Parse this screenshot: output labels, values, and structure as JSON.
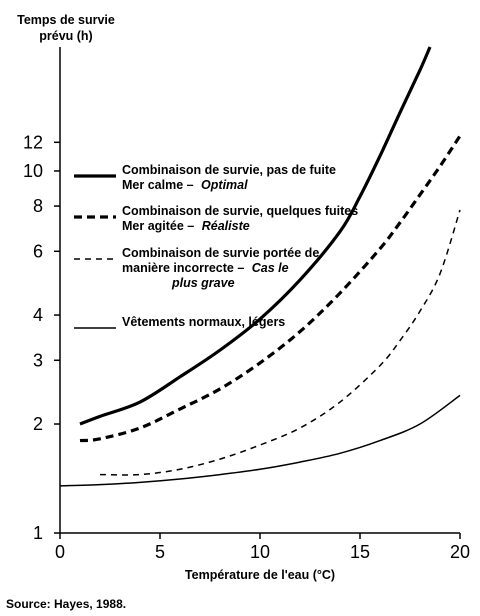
{
  "chart_data": {
    "type": "line",
    "ylabel_lines": [
      "Temps de survie",
      "prévu (h)"
    ],
    "xlabel": "Température de l'eau (°C)",
    "source": "Source: Hayes, 1988.",
    "xlim": [
      0,
      20
    ],
    "x_ticks": [
      "0",
      "5",
      "10",
      "15",
      "20"
    ],
    "y_scale": "log",
    "ylim": [
      1,
      22
    ],
    "y_ticks": [
      "1",
      "2",
      "3",
      "4",
      "6",
      "8",
      "10",
      "12"
    ],
    "grid": false,
    "legend_placement": "top-left",
    "series": [
      {
        "style": "thick-solid",
        "legend": [
          {
            "text": "Combinaison de survie, pas de fuite"
          },
          {
            "text": "Mer calme – ",
            "italic": "Optimal"
          }
        ],
        "x": [
          1,
          2,
          4,
          6,
          8,
          10,
          12,
          14,
          15,
          16,
          17,
          18,
          18.5
        ],
        "y": [
          2.0,
          2.1,
          2.3,
          2.7,
          3.2,
          3.9,
          5.0,
          6.8,
          8.5,
          11.0,
          14.5,
          19.0,
          22.0
        ]
      },
      {
        "style": "thick-dashed",
        "legend": [
          {
            "text": "Combinaison de survie, quelques fuites"
          },
          {
            "text": "Mer agitée – ",
            "italic": "Réaliste"
          }
        ],
        "x": [
          1,
          2,
          4,
          6,
          8,
          10,
          12,
          14,
          16,
          17,
          18,
          19,
          20
        ],
        "y": [
          1.8,
          1.82,
          1.95,
          2.2,
          2.5,
          2.95,
          3.6,
          4.6,
          6.1,
          7.2,
          8.6,
          10.3,
          12.5
        ]
      },
      {
        "style": "thin-dashed",
        "legend": [
          {
            "text": "Combinaison de survie portée de"
          },
          {
            "text": "manière incorrecte – ",
            "italic": "Cas le"
          },
          {
            "text": "",
            "italic": "plus grave"
          }
        ],
        "x": [
          2,
          4,
          6,
          8,
          10,
          12,
          14,
          16,
          17,
          18,
          19,
          20
        ],
        "y": [
          1.45,
          1.45,
          1.5,
          1.6,
          1.75,
          1.95,
          2.3,
          2.9,
          3.4,
          4.1,
          5.2,
          7.8
        ]
      },
      {
        "style": "thin-solid",
        "legend": [
          {
            "text": "Vêtements normaux, légers"
          }
        ],
        "x": [
          0,
          2,
          4,
          6,
          8,
          10,
          12,
          14,
          16,
          18,
          20
        ],
        "y": [
          1.35,
          1.36,
          1.38,
          1.41,
          1.45,
          1.5,
          1.57,
          1.66,
          1.8,
          2.0,
          2.4
        ]
      }
    ]
  }
}
